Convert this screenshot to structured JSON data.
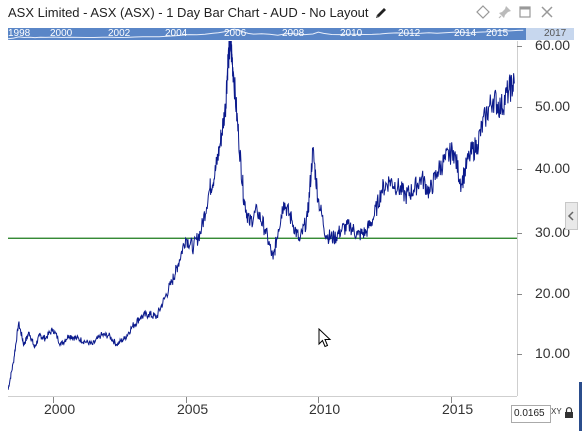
{
  "window": {
    "title": "ASX Limited - ASX (ASX) - 1 Day Bar Chart - AUD - No Layout"
  },
  "icons": {
    "edit": "pencil-icon",
    "buttons": [
      "diamond-icon",
      "pin-icon",
      "restore-icon",
      "close-icon"
    ],
    "lock": "lock-icon",
    "collapse": "chevron-left-icon",
    "cursor": "mouse-pointer-icon"
  },
  "overview": {
    "labels": [
      "1998",
      "2000",
      "2002",
      "2004",
      "2006",
      "2008",
      "2010",
      "2012",
      "2014",
      "2015",
      "2017"
    ]
  },
  "scale": {
    "value": "0.0165",
    "xy_label": "XY"
  },
  "colors": {
    "price_line": "#0b1a8c",
    "reference_line": "#1a7a1a",
    "overview_strip": "#5a86c7"
  },
  "chart_data": {
    "type": "line",
    "x_labels": [
      "2000",
      "2005",
      "2010",
      "2015"
    ],
    "y_labels": [
      "10.00",
      "20.00",
      "30.00",
      "40.00",
      "50.00",
      "60.00"
    ],
    "ylim": [
      2.5,
      61
    ],
    "xlim": [
      1998.6,
      2017.8
    ],
    "reference_line": 28.5,
    "series": [
      {
        "x": [
          1998.6,
          1998.8,
          1999.0,
          1999.2,
          1999.4,
          1999.6,
          1999.8,
          2000.0,
          2000.3,
          2000.6,
          2000.9,
          2001.2,
          2001.5,
          2001.8,
          2002.1,
          2002.4,
          2002.7,
          2003.0,
          2003.3,
          2003.6,
          2003.9,
          2004.2,
          2004.5,
          2004.8,
          2005.0,
          2005.3,
          2005.6,
          2005.9,
          2006.2,
          2006.4,
          2006.6,
          2006.8,
          2006.9,
          2007.0,
          2007.1,
          2007.3,
          2007.5,
          2007.7,
          2008.0,
          2008.3,
          2008.6,
          2008.8,
          2009.0,
          2009.3,
          2009.6,
          2009.9,
          2010.1,
          2010.3,
          2010.6,
          2010.9,
          2011.2,
          2011.5,
          2011.8,
          2012.1,
          2012.4,
          2012.7,
          2013.0,
          2013.3,
          2013.6,
          2013.9,
          2014.2,
          2014.5,
          2014.8,
          2015.1,
          2015.4,
          2015.7,
          2016.0,
          2016.3,
          2016.6,
          2016.9,
          2017.2,
          2017.5,
          2017.7
        ],
        "values": [
          3.5,
          8.0,
          14.5,
          11.0,
          13.0,
          10.5,
          12.5,
          12.0,
          13.5,
          11.0,
          12.5,
          12.0,
          11.5,
          11.0,
          12.5,
          12.5,
          11.0,
          12.0,
          14.0,
          15.5,
          16.0,
          15.5,
          18.5,
          21.5,
          24.0,
          28.5,
          27.0,
          30.0,
          36.5,
          39.0,
          44.0,
          50.0,
          58.0,
          60.5,
          56.0,
          45.0,
          35.0,
          31.0,
          33.0,
          30.0,
          25.0,
          30.0,
          34.5,
          31.5,
          28.0,
          32.0,
          43.0,
          35.0,
          29.0,
          28.5,
          30.0,
          30.5,
          29.0,
          29.5,
          32.0,
          36.5,
          38.0,
          37.0,
          35.5,
          36.5,
          38.5,
          36.0,
          39.5,
          41.5,
          43.0,
          37.5,
          42.0,
          44.0,
          48.5,
          51.5,
          50.0,
          53.0,
          54.0
        ]
      }
    ]
  }
}
